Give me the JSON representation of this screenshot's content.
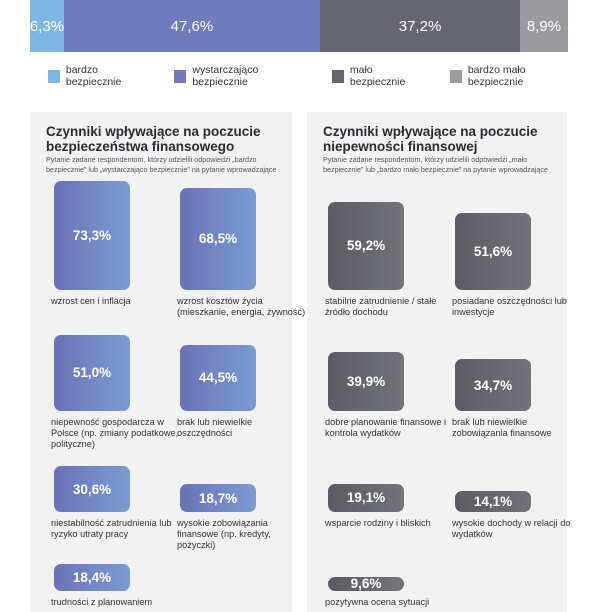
{
  "chart_data": [
    {
      "type": "bar",
      "orientation": "stacked-horizontal",
      "categories": [
        "bardzo bezpiecznie",
        "wystarczająco bezpiecznie",
        "mało bezpiecznie",
        "bardzo mało bezpiecznie"
      ],
      "values": [
        6.3,
        47.6,
        37.2,
        8.9
      ],
      "labels": [
        "6,3%",
        "47,6%",
        "37,2%",
        "8,9%"
      ],
      "colors": [
        "#80b6e3",
        "#6f7bbd",
        "#66666e",
        "#9b9ba0"
      ],
      "legend_placement": "bottom"
    },
    {
      "type": "bar",
      "title": "Czynniki wpływające na poczucie bezpieczeństwa finansowego",
      "subtitle": "Pytanie zadane respondentom, którzy udzielili odpowiedzi „bardzo bezpiecznie” lub „wystarczająco bezpiecznie” na pytanie wprowadzające",
      "color": "#6f7bbd",
      "items": [
        {
          "value": 73.3,
          "label": "73,3%",
          "category": "wzrost cen i inflacja"
        },
        {
          "value": 68.5,
          "label": "68,5%",
          "category": "wzrost kosztów życia (mieszkanie, energia, żywność)"
        },
        {
          "value": 51.0,
          "label": "51,0%",
          "category": "niepewność gospodarcza w Polsce (np. zmiany podatkowe, polityczne)"
        },
        {
          "value": 44.5,
          "label": "44,5%",
          "category": "brak lub niewielkie oszczędności"
        },
        {
          "value": 30.6,
          "label": "30,6%",
          "category": "niestabilność zatrudnienia lub ryzyko utraty pracy"
        },
        {
          "value": 18.7,
          "label": "18,7%",
          "category": "wysokie zobowiązania finansowe (np. kredyty, pożyczki)"
        },
        {
          "value": 18.4,
          "label": "18,4%",
          "category": "trudności z planowaniem"
        }
      ]
    },
    {
      "type": "bar",
      "title": "Czynniki wpływające na poczucie niepewności finansowej",
      "subtitle": "Pytanie zadane respondentom, którzy udzielili odpowiedzi „mało bezpiecznie” lub „bardzo mało bezpiecznie” na pytanie  wprowadzające",
      "color": "#66666e",
      "items": [
        {
          "value": 59.2,
          "label": "59,2%",
          "category": "stabilne zatrudnienie / stałe źródło dochodu"
        },
        {
          "value": 51.6,
          "label": "51,6%",
          "category": "posiadane oszczędności lub inwestycje"
        },
        {
          "value": 39.9,
          "label": "39,9%",
          "category": "dobre planowanie finansowe i kontrola wydatków"
        },
        {
          "value": 34.7,
          "label": "34,7%",
          "category": "brak lub niewielkie zobowiązania finansowe"
        },
        {
          "value": 19.1,
          "label": "19,1%",
          "category": "wsparcie rodziny i bliskich"
        },
        {
          "value": 14.1,
          "label": "14,1%",
          "category": "wysokie dochody w relacji do wydatków"
        },
        {
          "value": 9.6,
          "label": "9,6%",
          "category": "pozytywna ocena sytuacji"
        }
      ]
    }
  ]
}
